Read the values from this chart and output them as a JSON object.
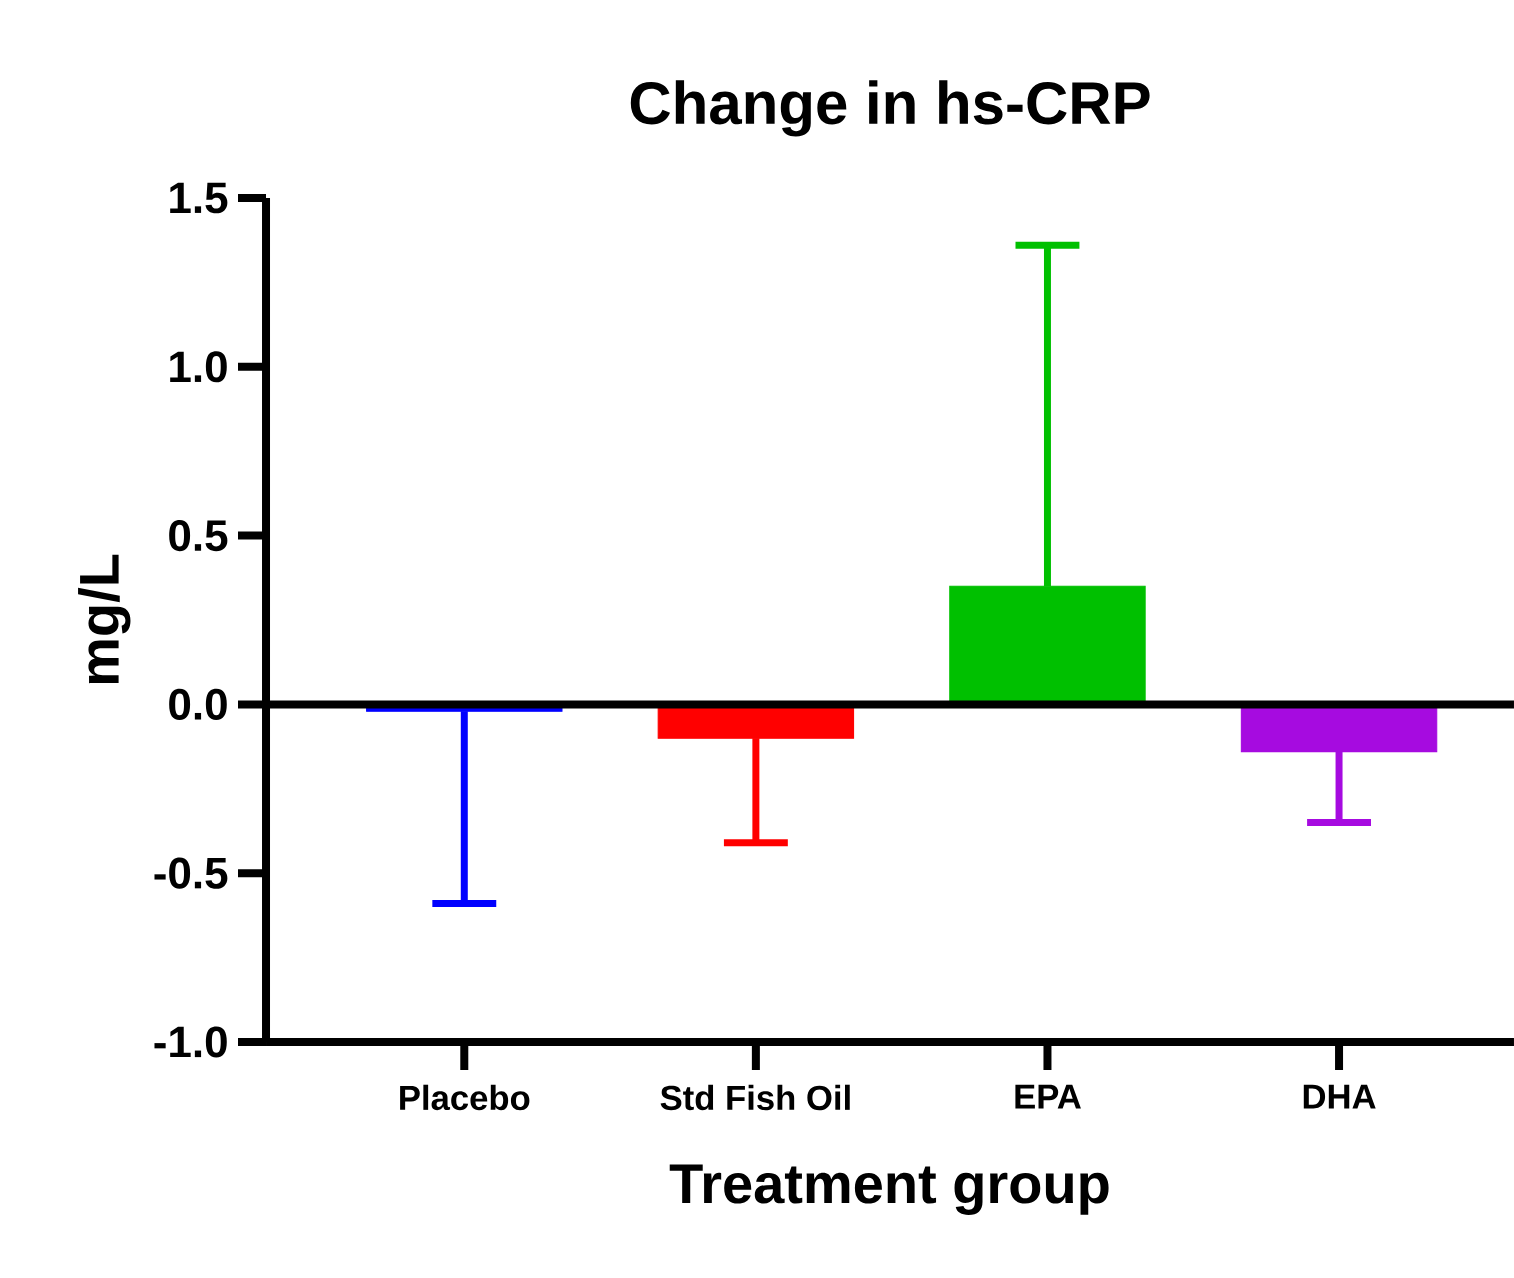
{
  "chart_data": {
    "type": "bar",
    "title": "Change in hs-CRP",
    "xlabel": "Treatment group",
    "ylabel": "mg/L",
    "categories": [
      "Placebo",
      "Std Fish Oil",
      "EPA",
      "DHA"
    ],
    "values": [
      -0.02,
      -0.1,
      0.35,
      -0.14
    ],
    "colors": [
      "#0000ff",
      "#ff0000",
      "#00c000",
      "#a60be0"
    ],
    "errors": [
      [
        -0.59,
        -0.02
      ],
      [
        -0.41,
        -0.1
      ],
      [
        0.35,
        1.36
      ],
      [
        -0.35,
        -0.14
      ]
    ],
    "ylim": [
      -1.0,
      1.5
    ],
    "yticks": [
      {
        "value": -1.0,
        "label": "-1.0"
      },
      {
        "value": -0.5,
        "label": "-0.5"
      },
      {
        "value": 0.0,
        "label": "0.0"
      },
      {
        "value": 0.5,
        "label": "0.5"
      },
      {
        "value": 1.0,
        "label": "1.0"
      },
      {
        "value": 1.5,
        "label": "1.5"
      }
    ],
    "ref_lines": [
      {
        "axis": "y",
        "value": 0,
        "color": "#000000"
      }
    ],
    "grid": false
  }
}
